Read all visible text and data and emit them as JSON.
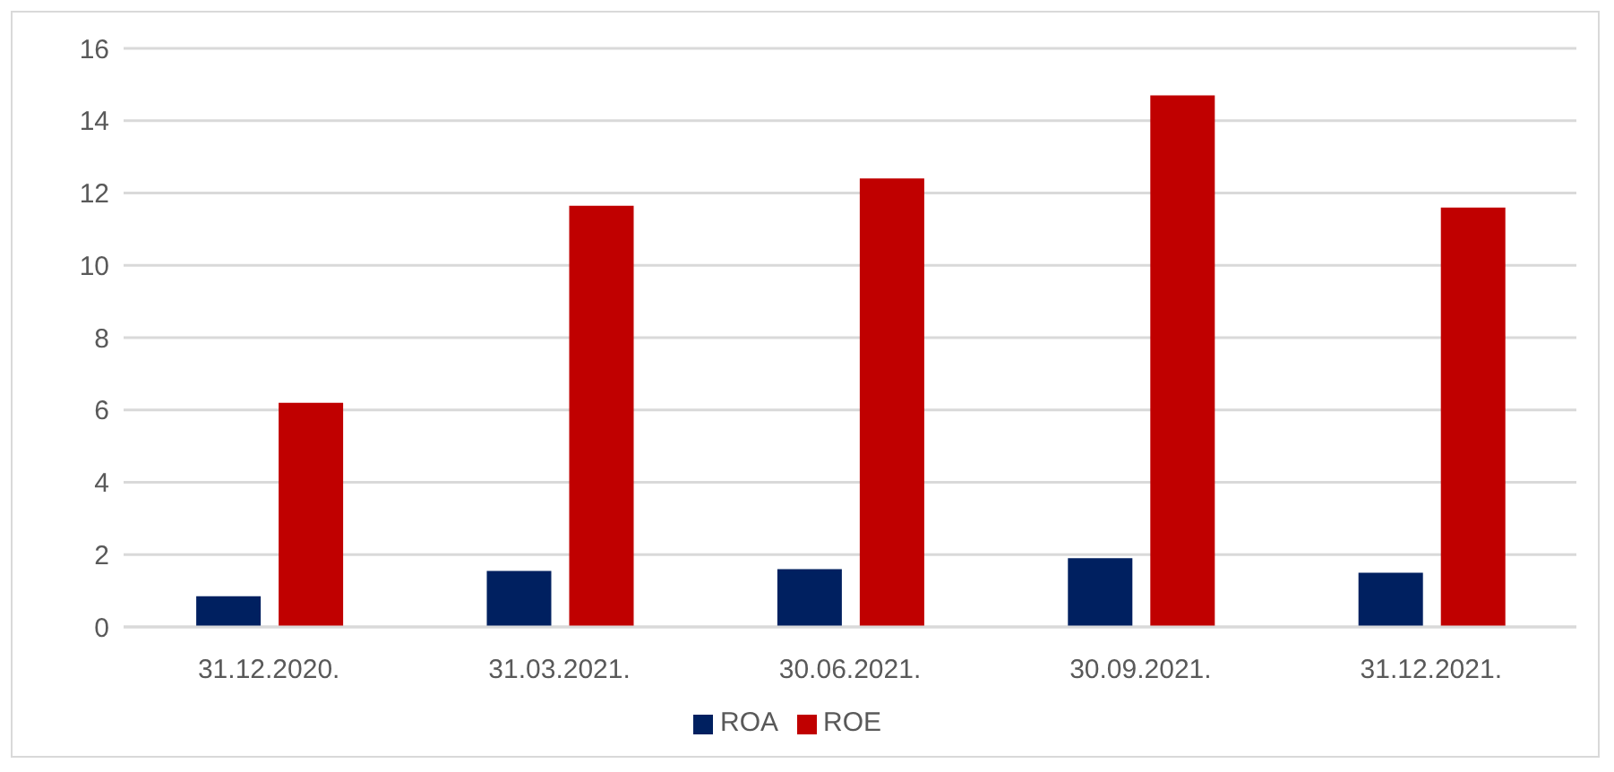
{
  "chart_data": {
    "type": "bar",
    "categories": [
      "31.12.2020.",
      "31.03.2021.",
      "30.06.2021.",
      "30.09.2021.",
      "31.12.2021."
    ],
    "series": [
      {
        "name": "ROA",
        "color": "#002060",
        "values": [
          0.85,
          1.55,
          1.6,
          1.9,
          1.5
        ]
      },
      {
        "name": "ROE",
        "color": "#c00000",
        "values": [
          6.2,
          11.65,
          12.4,
          14.7,
          11.6
        ]
      }
    ],
    "ylim": [
      0,
      16
    ],
    "yticks": [
      0,
      2,
      4,
      6,
      8,
      10,
      12,
      14,
      16
    ],
    "grid": "y",
    "legend": "bottom"
  }
}
